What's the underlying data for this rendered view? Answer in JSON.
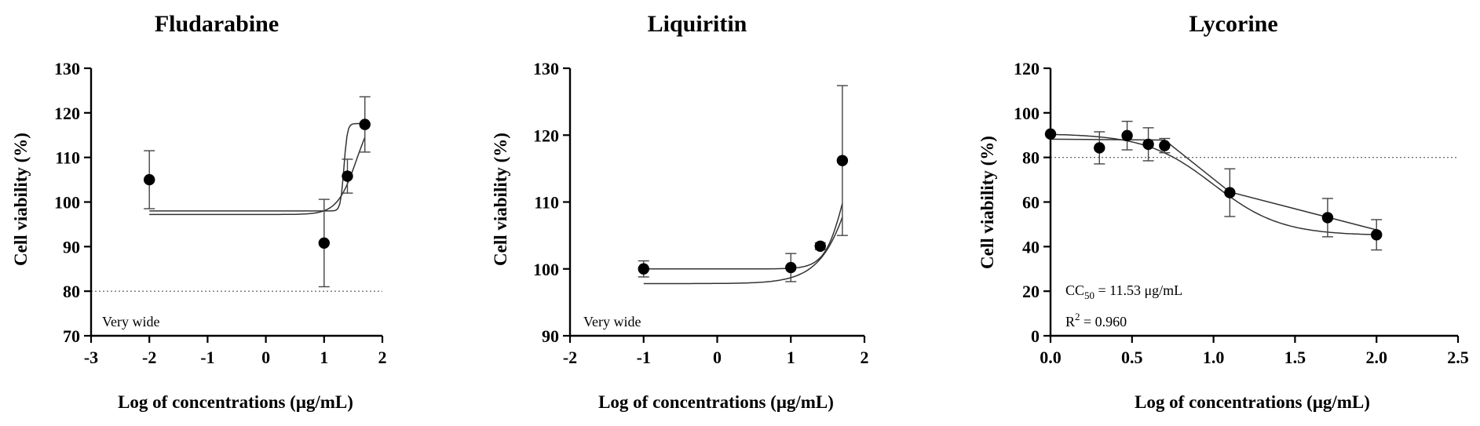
{
  "chart_data": [
    {
      "type": "scatter",
      "title": "Fludarabine",
      "xlabel": "Log of concentrations (μg/mL)",
      "ylabel": "Cell viability (%)",
      "xlim": [
        -3,
        2
      ],
      "ylim": [
        70,
        130
      ],
      "xticks": [
        -3,
        -2,
        -1,
        0,
        1,
        2
      ],
      "yticks": [
        70,
        80,
        90,
        100,
        110,
        120,
        130
      ],
      "xtick_labels": [
        "-3",
        "-2",
        "-1",
        "0",
        "1",
        "2"
      ],
      "ytick_labels": [
        "70",
        "80",
        "90",
        "100",
        "110",
        "120",
        "130"
      ],
      "reference_line_y": 80,
      "grid": false,
      "annotations": [
        "Very wide"
      ],
      "points": [
        {
          "x": -2,
          "y": 105,
          "err": 6.5
        },
        {
          "x": 1,
          "y": 90.8,
          "err": 9.8
        },
        {
          "x": 1.4,
          "y": 105.8,
          "err": 3.8
        },
        {
          "x": 1.7,
          "y": 117.4,
          "err": 6.2
        }
      ],
      "fit_curves": [
        {
          "kind": "sigmoid",
          "bottom": 98,
          "top": 117.6,
          "logec50": 1.34,
          "hill": 15,
          "xmin": -2,
          "xmax": 1.7
        },
        {
          "kind": "sigmoid",
          "bottom": 97.2,
          "top": 122,
          "logec50": 1.56,
          "hill": 2.6,
          "xmin": -2,
          "xmax": 1.7
        }
      ]
    },
    {
      "type": "scatter",
      "title": "Liquiritin",
      "xlabel": "Log of concentrations (μg/mL)",
      "ylabel": "Cell viability (%)",
      "xlim": [
        -2,
        2
      ],
      "ylim": [
        90,
        130
      ],
      "xticks": [
        -2,
        -1,
        0,
        1,
        2
      ],
      "yticks": [
        90,
        100,
        110,
        120,
        130
      ],
      "xtick_labels": [
        "-2",
        "-1",
        "0",
        "1",
        "2"
      ],
      "ytick_labels": [
        "90",
        "100",
        "110",
        "120",
        "130"
      ],
      "grid": false,
      "annotations": [
        "Very wide"
      ],
      "points": [
        {
          "x": -1,
          "y": 100,
          "err": 1.2
        },
        {
          "x": 1,
          "y": 100.2,
          "err": 2.1
        },
        {
          "x": 1.4,
          "y": 103.4,
          "err": 0.5
        },
        {
          "x": 1.7,
          "y": 116.2,
          "err": 11.2
        }
      ],
      "fit_curves": [
        {
          "kind": "sigmoid",
          "bottom": 100,
          "top": 124,
          "logec50": 1.75,
          "hill": 3.2,
          "xmin": -1,
          "xmax": 1.7
        },
        {
          "kind": "sigmoid",
          "bottom": 97.8,
          "top": 160,
          "logec50": 2.15,
          "hill": 1.6,
          "xmin": -1,
          "xmax": 1.7
        }
      ]
    },
    {
      "type": "scatter",
      "title": "Lycorine",
      "xlabel": "Log of concentrations (μg/mL)",
      "ylabel": "Cell viability (%)",
      "xlim": [
        0,
        2.5
      ],
      "ylim": [
        0,
        120
      ],
      "xticks": [
        0,
        0.5,
        1,
        1.5,
        2,
        2.5
      ],
      "yticks": [
        0,
        20,
        40,
        60,
        80,
        100,
        120
      ],
      "xtick_labels": [
        "0.0",
        "0.5",
        "1.0",
        "1.5",
        "2.0",
        "2.5"
      ],
      "ytick_labels": [
        "0",
        "20",
        "40",
        "60",
        "80",
        "100",
        "120"
      ],
      "reference_line_y": 80,
      "grid": false,
      "annotations": [
        "CC",
        "50",
        " = 11.53 μg/mL",
        "R",
        "2",
        " = 0.960"
      ],
      "points": [
        {
          "x": 0,
          "y": 90.5,
          "err": 0
        },
        {
          "x": 0.3,
          "y": 84.3,
          "err": 7.2
        },
        {
          "x": 0.47,
          "y": 89.8,
          "err": 6.4
        },
        {
          "x": 0.6,
          "y": 85.9,
          "err": 7.4
        },
        {
          "x": 0.7,
          "y": 85.3,
          "err": 3.2
        },
        {
          "x": 1.1,
          "y": 64.2,
          "err": 10.7
        },
        {
          "x": 1.7,
          "y": 53,
          "err": 8.6
        },
        {
          "x": 2,
          "y": 45.3,
          "err": 6.8
        }
      ],
      "fit_curves": [
        {
          "kind": "polyline",
          "x": [
            0,
            0.7,
            1.1,
            2.0
          ],
          "y": [
            88.2,
            87.8,
            64.5,
            47.5
          ]
        },
        {
          "kind": "sigmoid",
          "bottom": 45,
          "top": 90.7,
          "logec50": 1.0,
          "hill": -2.1,
          "xmin": 0,
          "xmax": 2
        }
      ]
    }
  ]
}
